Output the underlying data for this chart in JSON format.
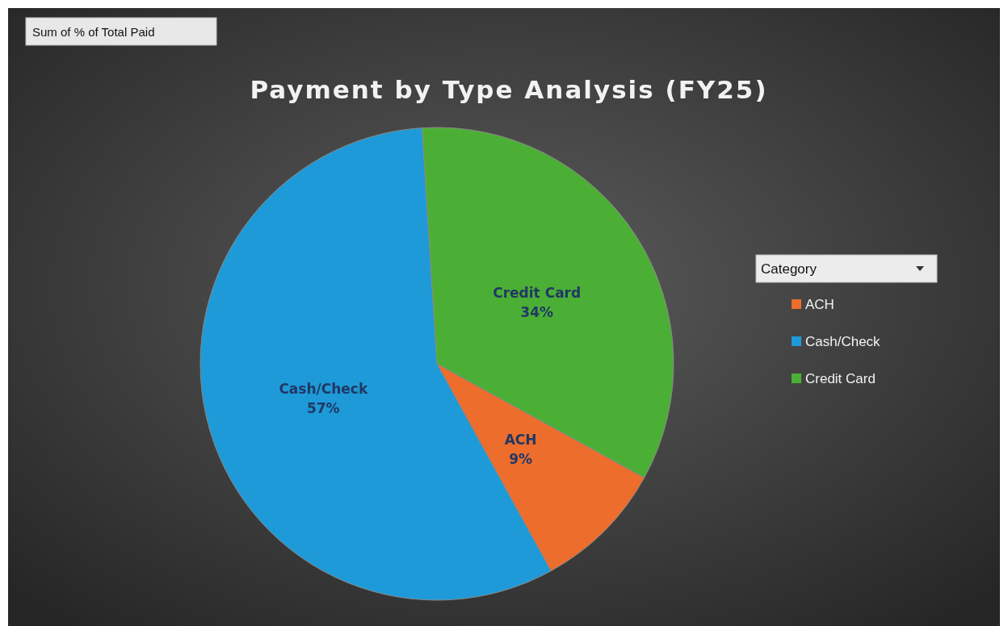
{
  "chart_data": {
    "type": "pie",
    "title": "Payment by Type Analysis (FY25)",
    "annotations": [
      "Sum of % of Total Paid"
    ],
    "legend_title": "Category",
    "legend": "right",
    "categories": [
      "ACH",
      "Cash/Check",
      "Credit Card"
    ],
    "values": [
      9,
      57,
      34
    ],
    "value_labels": [
      "9%",
      "57%",
      "34%"
    ],
    "colors": [
      "#ed6d2c",
      "#1e9ad8",
      "#4caf35"
    ]
  }
}
